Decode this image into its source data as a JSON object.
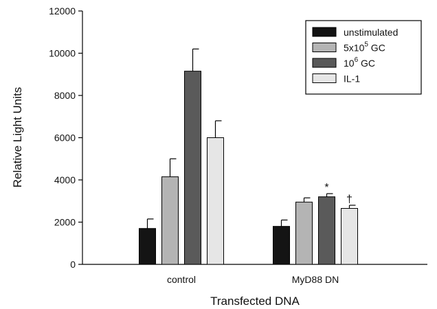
{
  "chart_data": {
    "type": "bar",
    "xlabel": "Transfected DNA",
    "ylabel": "Relative Light Units",
    "ylim": [
      0,
      12000
    ],
    "yticks": [
      0,
      2000,
      4000,
      6000,
      8000,
      10000,
      12000
    ],
    "categories": [
      "control",
      "MyD88 DN"
    ],
    "legend_position": "top-right",
    "series": [
      {
        "name": "unstimulated",
        "color": "#141414",
        "values": [
          1700,
          1800
        ],
        "errors": [
          450,
          300
        ]
      },
      {
        "name_prefix": "5x10",
        "name_sup": "5",
        "name_suffix": " GC",
        "color": "#b4b4b4",
        "values": [
          4150,
          2950
        ],
        "errors": [
          850,
          200
        ]
      },
      {
        "name_prefix": "10",
        "name_sup": "6",
        "name_suffix": " GC",
        "color": "#5a5a5a",
        "values": [
          9150,
          3200
        ],
        "errors": [
          1050,
          150
        ]
      },
      {
        "name": "IL-1",
        "color": "#e6e6e6",
        "values": [
          6000,
          2650
        ],
        "errors": [
          800,
          150
        ]
      }
    ],
    "annotations": [
      {
        "category_index": 1,
        "series_index": 2,
        "symbol": "*"
      },
      {
        "category_index": 1,
        "series_index": 3,
        "symbol": "†"
      }
    ]
  }
}
